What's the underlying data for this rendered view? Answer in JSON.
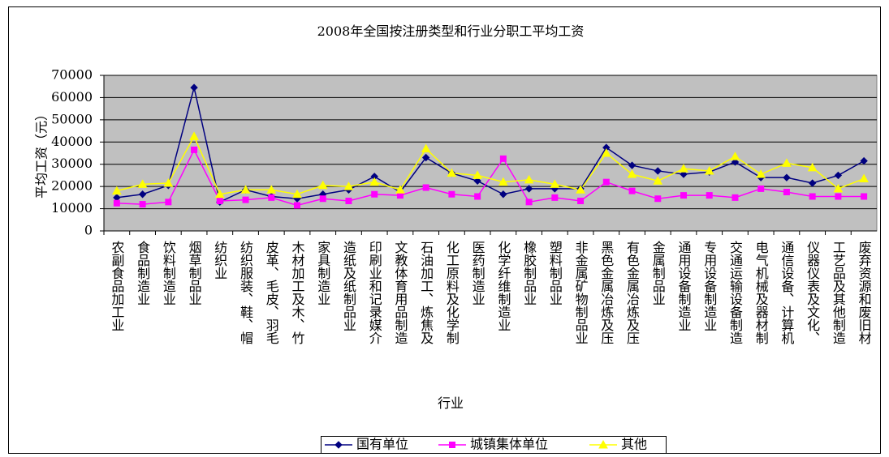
{
  "chart_data": {
    "type": "line",
    "title": "2008年全国按注册类型和行业分职工平均工资",
    "x_label": "行业",
    "y_label": "平均工资（元）",
    "categories": [
      "农副食品加工业",
      "食品制造业",
      "饮料制造业",
      "烟草制品业",
      "纺织业",
      "纺织服装、鞋、帽",
      "皮革、毛皮、羽毛",
      "木材加工及木、竹",
      "家具制造业",
      "造纸及纸制品业",
      "印刷业和记录媒介",
      "文教体育用品制造",
      "石油加工、炼焦及",
      "化工原料及化学制",
      "医药制造业",
      "化学纤维制造业",
      "橡胶制品业",
      "塑料制品业",
      "非金属矿物制品业",
      "黑色金属冶炼及压",
      "有色金属冶炼及压",
      "金属制品业",
      "通用设备制造业",
      "专用设备制造业",
      "交通运输设备制造",
      "电气机械及器材制",
      "通信设备、计算机",
      "仪器仪表及文化、",
      "工艺品及其他制造",
      "废弃资源和废旧材"
    ],
    "series": [
      {
        "name": "国有单位",
        "color": "#000080",
        "marker": "diamond",
        "values": [
          15000,
          16500,
          20500,
          64500,
          13000,
          18500,
          15500,
          14500,
          16500,
          18500,
          24500,
          17500,
          33000,
          26000,
          22500,
          16500,
          19000,
          19000,
          19000,
          37500,
          29500,
          27000,
          25500,
          26500,
          31000,
          24000,
          24000,
          21500,
          25000,
          31500
        ]
      },
      {
        "name": "城镇集体单位",
        "color": "#ff00ff",
        "marker": "square",
        "values": [
          12500,
          12000,
          13000,
          36500,
          13500,
          14000,
          15000,
          11500,
          14500,
          13500,
          16500,
          16000,
          19500,
          16500,
          15500,
          32500,
          13000,
          15000,
          13500,
          22000,
          18000,
          14500,
          16000,
          16000,
          15000,
          19000,
          17500,
          15500,
          15500,
          15500
        ]
      },
      {
        "name": "其他",
        "color": "#ffff00",
        "marker": "triangle",
        "values": [
          18000,
          21000,
          21500,
          42500,
          16500,
          18500,
          18500,
          16500,
          20500,
          20000,
          22000,
          18500,
          37000,
          26000,
          25000,
          22000,
          23000,
          21000,
          18500,
          35000,
          25500,
          22500,
          28000,
          27000,
          33500,
          25500,
          30500,
          28500,
          19000,
          23500
        ]
      }
    ],
    "ylim": [
      0,
      70000
    ],
    "yticks": [
      0,
      10000,
      20000,
      30000,
      40000,
      50000,
      60000,
      70000
    ],
    "grid": true,
    "legend": "bottom"
  }
}
